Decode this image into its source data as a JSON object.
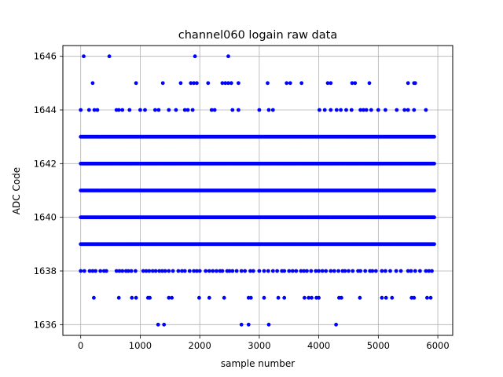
{
  "chart_data": {
    "type": "scatter",
    "title": "channel060 logain raw data",
    "xlabel": "sample number",
    "ylabel": "ADC Code",
    "xlim": [
      -300,
      6250
    ],
    "ylim": [
      1635.6,
      1646.4
    ],
    "xticks": [
      0,
      1000,
      2000,
      3000,
      4000,
      5000,
      6000
    ],
    "yticks": [
      1636,
      1638,
      1640,
      1642,
      1644,
      1646
    ],
    "grid": true,
    "marker": "dot",
    "color": "#0000ff",
    "n_samples": 5940,
    "dense_levels": [
      1639,
      1640,
      1641,
      1642,
      1643
    ],
    "sparse_levels": {
      "1638": [
        0,
        60,
        150,
        200,
        250,
        330,
        390,
        430,
        600,
        650,
        700,
        760,
        800,
        850,
        920,
        1050,
        1100,
        1150,
        1210,
        1260,
        1320,
        1370,
        1420,
        1480,
        1550,
        1640,
        1700,
        1750,
        1830,
        1900,
        1950,
        2000,
        2100,
        2160,
        2220,
        2280,
        2340,
        2380,
        2460,
        2500,
        2550,
        2620,
        2700,
        2760,
        2850,
        2900,
        3000,
        3080,
        3150,
        3230,
        3300,
        3380,
        3420,
        3500,
        3560,
        3620,
        3700,
        3750,
        3800,
        3870,
        3950,
        4000,
        4060,
        4120,
        4200,
        4260,
        4330,
        4400,
        4440,
        4500,
        4570,
        4660,
        4700,
        4780,
        4860,
        4900,
        4960,
        5060,
        5120,
        5200,
        5300,
        5380,
        5500,
        5550,
        5620,
        5700,
        5800,
        5850,
        5900
      ],
      "1644": [
        0,
        140,
        230,
        280,
        600,
        640,
        700,
        820,
        1000,
        1080,
        1250,
        1310,
        1480,
        1600,
        1750,
        1800,
        1880,
        2200,
        2250,
        2550,
        2650,
        3000,
        3160,
        3230,
        4010,
        4100,
        4200,
        4300,
        4370,
        4460,
        4550,
        4700,
        4750,
        4800,
        4880,
        5000,
        5120,
        5310,
        5440,
        5500,
        5600,
        5800
      ],
      "1645": [
        200,
        930,
        1380,
        1680,
        1850,
        1900,
        1950,
        2140,
        2380,
        2430,
        2480,
        2530,
        2650,
        3140,
        3460,
        3520,
        3710,
        4150,
        4200,
        4560,
        4610,
        4850,
        5500,
        5600,
        5620
      ],
      "1646": [
        50,
        480,
        1920,
        2480
      ],
      "1637": [
        220,
        640,
        860,
        930,
        1130,
        1160,
        1480,
        1530,
        1990,
        2160,
        2410,
        2820,
        2860,
        3080,
        3320,
        3420,
        3760,
        3830,
        3880,
        3960,
        4000,
        4340,
        4380,
        4690,
        5060,
        5130,
        5230,
        5560,
        5600,
        5820,
        5880
      ],
      "1636": [
        1300,
        1400,
        2700,
        2820,
        3160,
        4290
      ]
    }
  }
}
